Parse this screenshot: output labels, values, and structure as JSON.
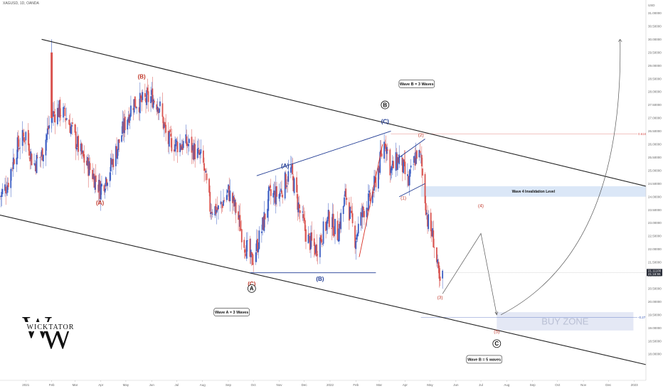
{
  "header": {
    "symbol_line": "XAGUSD, 1D, OANDA"
  },
  "chart_data": {
    "type": "candlestick",
    "title": "",
    "xlabel": "",
    "ylabel": "",
    "ylim": [
      17.0,
      31.5
    ],
    "y_tick_labels": [
      "18.00000",
      "18.50000",
      "19.00000",
      "19.50000",
      "20.00000",
      "20.50000",
      "21.00000",
      "21.50000",
      "22.00000",
      "22.50000",
      "23.00000",
      "23.50000",
      "24.00000",
      "24.50000",
      "25.00000",
      "25.50000",
      "26.00000",
      "26.50000",
      "27.00000",
      "27.50000",
      "28.00000",
      "28.50000",
      "29.00000",
      "29.50000",
      "30.00000",
      "30.50000",
      "31.00000"
    ],
    "y_unit_label": "USD",
    "x_range": [
      "2020-12-01",
      "2023-01-15"
    ],
    "x_ticks": [
      {
        "date": "2021-01-01",
        "label": "2021"
      },
      {
        "date": "2021-02-01",
        "label": "Feb"
      },
      {
        "date": "2021-03-01",
        "label": "Mar"
      },
      {
        "date": "2021-04-01",
        "label": "Apr"
      },
      {
        "date": "2021-05-01",
        "label": "May"
      },
      {
        "date": "2021-06-01",
        "label": "Jun"
      },
      {
        "date": "2021-07-01",
        "label": "Jul"
      },
      {
        "date": "2021-08-01",
        "label": "Aug"
      },
      {
        "date": "2021-09-01",
        "label": "Sep"
      },
      {
        "date": "2021-10-01",
        "label": "Oct"
      },
      {
        "date": "2021-11-01",
        "label": "Nov"
      },
      {
        "date": "2021-12-01",
        "label": "Dec"
      },
      {
        "date": "2022-01-01",
        "label": "2022"
      },
      {
        "date": "2022-02-01",
        "label": "Feb"
      },
      {
        "date": "2022-03-01",
        "label": "Mar"
      },
      {
        "date": "2022-04-01",
        "label": "Apr"
      },
      {
        "date": "2022-05-01",
        "label": "May"
      },
      {
        "date": "2022-06-01",
        "label": "Jun"
      },
      {
        "date": "2022-07-01",
        "label": "Jul"
      },
      {
        "date": "2022-08-01",
        "label": "Aug"
      },
      {
        "date": "2022-09-01",
        "label": "Sep"
      },
      {
        "date": "2022-10-01",
        "label": "Oct"
      },
      {
        "date": "2022-11-01",
        "label": "Nov"
      },
      {
        "date": "2022-12-01",
        "label": "Dec"
      },
      {
        "date": "2023-01-01",
        "label": "2023"
      }
    ],
    "price_path": [
      {
        "date": "2020-12-01",
        "close": 24.0
      },
      {
        "date": "2020-12-10",
        "close": 24.5
      },
      {
        "date": "2020-12-20",
        "close": 25.8
      },
      {
        "date": "2021-01-01",
        "close": 26.4
      },
      {
        "date": "2021-01-10",
        "close": 25.2
      },
      {
        "date": "2021-01-20",
        "close": 25.6
      },
      {
        "date": "2021-02-01",
        "close": 27.1
      },
      {
        "date": "2021-02-10",
        "close": 27.3
      },
      {
        "date": "2021-02-20",
        "close": 27.0
      },
      {
        "date": "2021-03-01",
        "close": 26.2
      },
      {
        "date": "2021-03-10",
        "close": 25.5
      },
      {
        "date": "2021-03-20",
        "close": 25.0
      },
      {
        "date": "2021-03-31",
        "close": 24.3
      },
      {
        "date": "2021-04-10",
        "close": 24.9
      },
      {
        "date": "2021-04-20",
        "close": 25.8
      },
      {
        "date": "2021-05-01",
        "close": 26.9
      },
      {
        "date": "2021-05-10",
        "close": 27.6
      },
      {
        "date": "2021-05-20",
        "close": 27.6
      },
      {
        "date": "2021-06-01",
        "close": 27.8
      },
      {
        "date": "2021-06-10",
        "close": 27.5
      },
      {
        "date": "2021-06-20",
        "close": 26.1
      },
      {
        "date": "2021-07-01",
        "close": 26.0
      },
      {
        "date": "2021-07-15",
        "close": 26.0
      },
      {
        "date": "2021-08-01",
        "close": 25.4
      },
      {
        "date": "2021-08-10",
        "close": 23.6
      },
      {
        "date": "2021-08-20",
        "close": 23.5
      },
      {
        "date": "2021-09-01",
        "close": 24.2
      },
      {
        "date": "2021-09-10",
        "close": 23.5
      },
      {
        "date": "2021-09-20",
        "close": 22.3
      },
      {
        "date": "2021-09-29",
        "close": 21.5
      },
      {
        "date": "2021-10-10",
        "close": 22.6
      },
      {
        "date": "2021-10-20",
        "close": 24.0
      },
      {
        "date": "2021-11-01",
        "close": 24.1
      },
      {
        "date": "2021-11-15",
        "close": 25.0
      },
      {
        "date": "2021-11-25",
        "close": 23.5
      },
      {
        "date": "2021-12-05",
        "close": 22.4
      },
      {
        "date": "2021-12-15",
        "close": 22.0
      },
      {
        "date": "2021-12-31",
        "close": 23.2
      },
      {
        "date": "2022-01-10",
        "close": 22.6
      },
      {
        "date": "2022-01-20",
        "close": 24.1
      },
      {
        "date": "2022-01-31",
        "close": 22.4
      },
      {
        "date": "2022-02-10",
        "close": 23.5
      },
      {
        "date": "2022-02-20",
        "close": 24.0
      },
      {
        "date": "2022-03-01",
        "close": 25.2
      },
      {
        "date": "2022-03-08",
        "close": 26.2
      },
      {
        "date": "2022-03-15",
        "close": 25.0
      },
      {
        "date": "2022-03-25",
        "close": 25.5
      },
      {
        "date": "2022-04-05",
        "close": 24.5
      },
      {
        "date": "2022-04-15",
        "close": 25.7
      },
      {
        "date": "2022-04-20",
        "close": 25.4
      },
      {
        "date": "2022-04-28",
        "close": 23.1
      },
      {
        "date": "2022-05-05",
        "close": 22.4
      },
      {
        "date": "2022-05-13",
        "close": 20.5
      },
      {
        "date": "2022-05-16",
        "close": 21.1
      }
    ],
    "last_price_label": "21.11100",
    "last_time_label": "21:16:55",
    "trend_lines": [
      {
        "name": "upper-channel",
        "from": {
          "date": "2021-01-20",
          "price": 30.0
        },
        "to": {
          "date": "2023-01-15",
          "price": 24.4
        },
        "color": "#222222"
      },
      {
        "name": "lower-channel",
        "from": {
          "date": "2020-12-01",
          "price": 23.3
        },
        "to": {
          "date": "2023-01-15",
          "price": 17.6
        },
        "color": "#222222"
      },
      {
        "name": "wave-b-top",
        "from": {
          "date": "2021-10-05",
          "price": 24.8
        },
        "to": {
          "date": "2022-03-15",
          "price": 26.5
        },
        "color": "#1f3a93"
      },
      {
        "name": "wave-b-base",
        "from": {
          "date": "2021-09-27",
          "price": 21.1
        },
        "to": {
          "date": "2022-02-25",
          "price": 21.1
        },
        "color": "#1f3a93"
      },
      {
        "name": "red-impulse",
        "from": {
          "date": "2022-02-05",
          "price": 21.7
        },
        "to": {
          "date": "2022-03-05",
          "price": 26.0
        },
        "color": "#d93025"
      },
      {
        "name": "wedge-top",
        "from": {
          "date": "2022-03-25",
          "price": 25.5
        },
        "to": {
          "date": "2022-04-25",
          "price": 26.2
        },
        "color": "#1f3a93"
      },
      {
        "name": "wedge-bottom",
        "from": {
          "date": "2022-03-25",
          "price": 24.0
        },
        "to": {
          "date": "2022-04-25",
          "price": 24.5
        },
        "color": "#1f3a93"
      }
    ],
    "projection": [
      {
        "date": "2022-05-16",
        "price": 20.3
      },
      {
        "date": "2022-07-01",
        "price": 22.6
      },
      {
        "date": "2022-07-20",
        "price": 19.5
      }
    ],
    "projection_arc": [
      {
        "date": "2022-07-25",
        "price": 19.5
      },
      {
        "date": "2022-11-15",
        "price": 23.0
      },
      {
        "date": "2022-12-15",
        "price": 30.0
      }
    ],
    "fib_levels": [
      {
        "price": 26.4,
        "label": "0.618",
        "color": "#d9534f"
      },
      {
        "price": 19.4,
        "label": "-0.27",
        "color": "#3a5ab8"
      }
    ],
    "zones": [
      {
        "name": "wave-4-invalidation",
        "label": "Wave 4 Invalidation Level",
        "price_low": 24.0,
        "price_high": 24.4,
        "from": "2022-04-20",
        "to": "2023-01-15",
        "color": "#dbe7f7"
      },
      {
        "name": "buy-zone",
        "label": "BUY ZONE",
        "price_low": 18.9,
        "price_high": 19.6,
        "from": "2022-07-20",
        "to": "2022-12-31",
        "color": "#e4e8f5"
      }
    ],
    "wave_labels": [
      {
        "text": "(A)",
        "date": "2021-03-31",
        "price": 23.7,
        "style": "red"
      },
      {
        "text": "(B)",
        "date": "2021-05-20",
        "price": 28.5,
        "style": "red"
      },
      {
        "text": "(C)",
        "date": "2021-09-29",
        "price": 20.6,
        "style": "red"
      },
      {
        "text": "(A)",
        "date": "2021-11-08",
        "price": 25.1,
        "style": "blue"
      },
      {
        "text": "(B)",
        "date": "2021-12-20",
        "price": 20.8,
        "style": "blue"
      },
      {
        "text": "(C)",
        "date": "2022-03-08",
        "price": 26.8,
        "style": "blue"
      },
      {
        "text": "(2)",
        "date": "2022-04-20",
        "price": 26.3,
        "style": "small"
      },
      {
        "text": "(1)",
        "date": "2022-03-30",
        "price": 23.9,
        "style": "small"
      },
      {
        "text": "(3)",
        "date": "2022-05-13",
        "price": 20.1,
        "style": "small"
      },
      {
        "text": "(4)",
        "date": "2022-07-01",
        "price": 23.6,
        "style": "small"
      },
      {
        "text": "(5)",
        "date": "2022-07-20",
        "price": 18.8,
        "style": "small"
      }
    ],
    "circle_labels": [
      {
        "text": "A",
        "date": "2021-09-29",
        "price": 20.5
      },
      {
        "text": "B",
        "date": "2022-03-08",
        "price": 27.5
      },
      {
        "text": "C",
        "date": "2022-07-20",
        "price": 18.4
      }
    ],
    "callouts": [
      {
        "text": "Wave A = 3 Waves",
        "date": "2021-09-05",
        "price": 19.6
      },
      {
        "text": "Wave B = 3 Waves",
        "date": "2022-04-15",
        "price": 28.3
      },
      {
        "text": "Wave B = 5 waves",
        "date": "2022-07-05",
        "price": 17.8
      }
    ]
  },
  "watermark": {
    "logo_text": "WICKTATOR",
    "logo_letter": "W"
  }
}
